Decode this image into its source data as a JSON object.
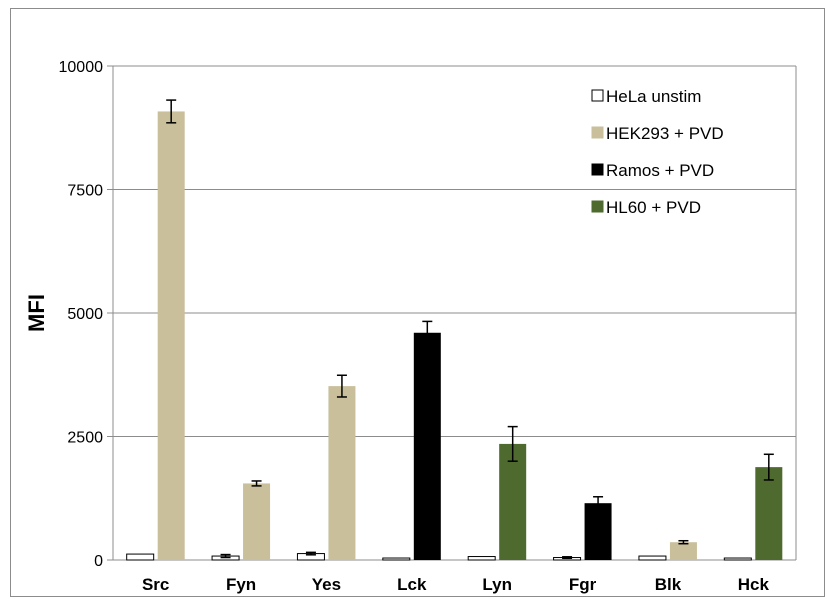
{
  "chart_data": {
    "type": "bar",
    "ylabel": "MFI",
    "xlabel": "",
    "ylim": [
      0,
      10000
    ],
    "yticks": [
      0,
      2500,
      5000,
      7500,
      10000
    ],
    "grid": true,
    "legend_position": "top-right",
    "categories": [
      "Src",
      "Fyn",
      "Yes",
      "Lck",
      "Lyn",
      "Fgr",
      "Blk",
      "Hck"
    ],
    "series": [
      {
        "name": "HeLa unstim",
        "color": "#ffffff",
        "values": [
          120,
          80,
          130,
          40,
          70,
          50,
          80,
          40
        ],
        "errors": [
          0,
          30,
          25,
          0,
          0,
          15,
          0,
          0
        ]
      },
      {
        "name": "HEK293 + PVD",
        "color": "#c9bf9a",
        "values": [
          9080,
          1550,
          3520,
          null,
          null,
          null,
          360,
          null
        ],
        "errors": [
          230,
          50,
          220,
          null,
          null,
          null,
          30,
          null
        ]
      },
      {
        "name": "Ramos + PVD",
        "color": "#000000",
        "values": [
          null,
          null,
          null,
          4600,
          null,
          1150,
          null,
          null
        ],
        "errors": [
          null,
          null,
          null,
          230,
          null,
          130,
          null,
          null
        ]
      },
      {
        "name": "HL60 + PVD",
        "color": "#4e6a2e",
        "values": [
          null,
          null,
          null,
          null,
          2350,
          null,
          null,
          1880
        ],
        "errors": [
          null,
          null,
          null,
          null,
          350,
          null,
          null,
          260
        ]
      }
    ]
  }
}
